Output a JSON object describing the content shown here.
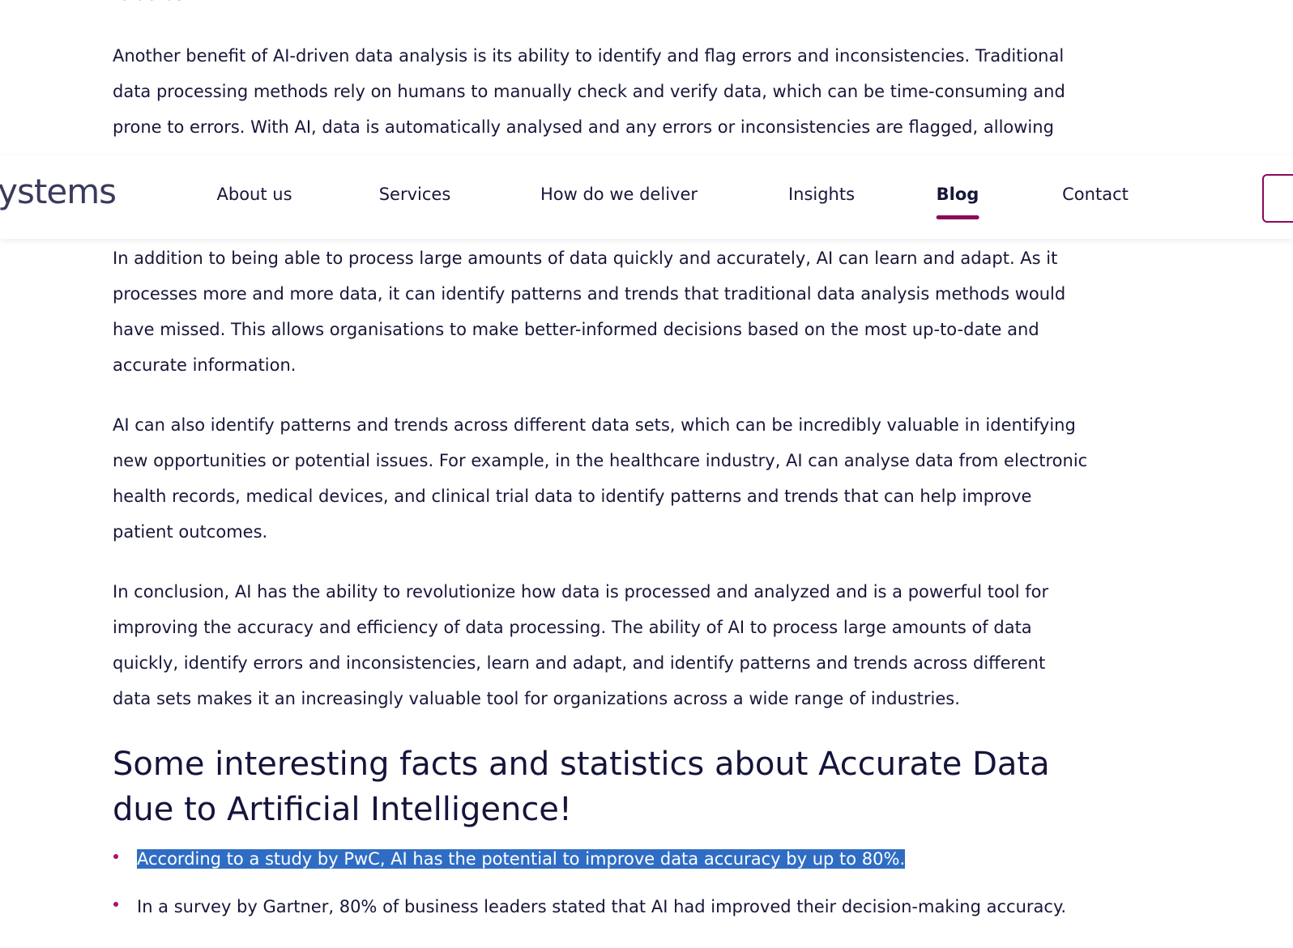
{
  "top_fragment": "to detect.",
  "paragraphs": [
    {
      "lines": [
        "Another benefit of AI-driven data analysis is its ability to identify and flag errors and inconsistencies. Traditional",
        "data processing methods rely on humans to manually check and verify data, which can be time-consuming and",
        "prone to errors. With AI, data is automatically analysed and any errors or inconsistencies are flagged, allowing"
      ]
    },
    {
      "lines": [
        "In addition to being able to process large amounts of data quickly and accurately, AI can learn and adapt. As it",
        "processes more and more data, it can identify patterns and trends that traditional data analysis methods would",
        "have missed. This allows organisations to make better-informed decisions based on the most up-to-date and",
        "accurate information."
      ]
    },
    {
      "lines": [
        "AI can also identify patterns and trends across different data sets, which can be incredibly valuable in identifying",
        "new opportunities or potential issues. For example, in the healthcare industry, AI can analyse data from electronic",
        "health records, medical devices, and clinical trial data to identify patterns and trends that can help improve",
        "patient outcomes."
      ]
    },
    {
      "lines": [
        "In conclusion, AI has the ability to revolutionize how data is processed and analyzed and is a powerful tool for",
        "improving the accuracy and efficiency of data processing. The ability of AI to process large amounts of data",
        "quickly, identify errors and inconsistencies, learn and adapt, and identify patterns and trends across different",
        "data sets makes it an increasingly valuable tool for organizations across a wide range of industries."
      ]
    }
  ],
  "nav": {
    "logo": "systems",
    "items": [
      "About us",
      "Services",
      "How do we deliver",
      "Insights",
      "Blog",
      "Contact"
    ],
    "active_index": 4
  },
  "heading": {
    "lines": [
      "Some interesting facts and statistics about Accurate Data",
      "due to Artificial Intelligence!"
    ]
  },
  "bullets": [
    "According to a study by PwC, AI has the potential to improve data accuracy by up to 80%.",
    "In a survey by Gartner, 80% of business leaders stated that AI had improved their decision-making accuracy."
  ]
}
